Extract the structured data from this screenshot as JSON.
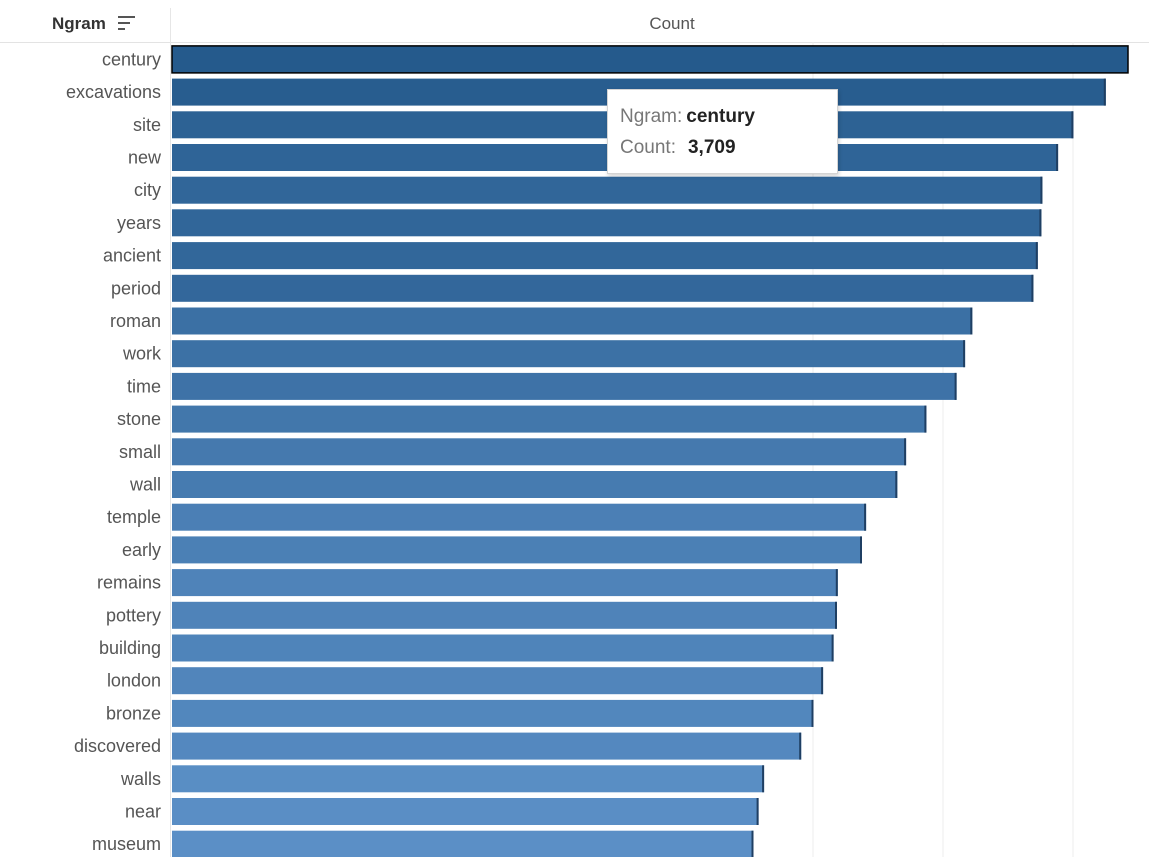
{
  "header": {
    "row_label": "Ngram",
    "column_label": "Count",
    "sort_icon": "sort-descending-icon"
  },
  "tooltip": {
    "ngram_key": "Ngram:",
    "ngram_value": "century",
    "count_key": "Count:",
    "count_value": "3,709"
  },
  "colors": {
    "bar_dark": "#255a8c",
    "bar_light": "#5b8fc6",
    "selected_outline": "#000000",
    "gridline": "#ececec"
  },
  "chart_data": {
    "type": "bar",
    "orientation": "horizontal",
    "categories": [
      "century",
      "excavations",
      "site",
      "new",
      "city",
      "years",
      "ancient",
      "period",
      "roman",
      "work",
      "time",
      "stone",
      "small",
      "wall",
      "temple",
      "early",
      "remains",
      "pottery",
      "building",
      "london",
      "bronze",
      "discovered",
      "walls",
      "near",
      "museum"
    ],
    "values": [
      3709,
      3623,
      3497,
      3438,
      3377,
      3373,
      3359,
      3342,
      3105,
      3077,
      3044,
      2927,
      2848,
      2814,
      2693,
      2677,
      2583,
      2580,
      2567,
      2526,
      2489,
      2441,
      2297,
      2276,
      2256
    ],
    "xlabel": "Count",
    "ylabel": "Ngram",
    "xlim": [
      0,
      3709
    ],
    "selected": "century",
    "grid": true
  }
}
